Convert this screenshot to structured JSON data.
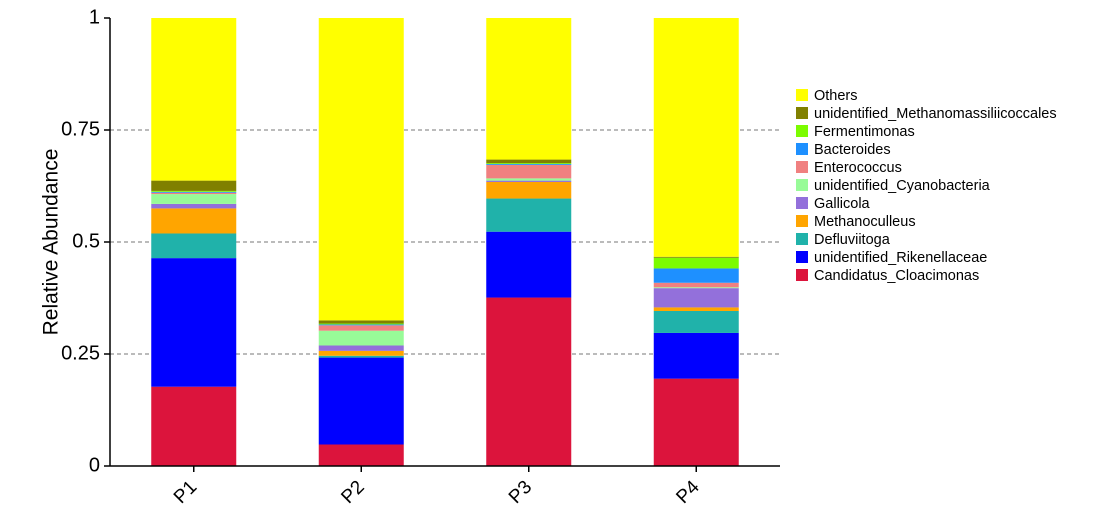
{
  "chart_data": {
    "type": "bar",
    "stacked": true,
    "title": "",
    "xlabel": "",
    "ylabel": "Relative Abundance",
    "ylim": [
      0,
      1
    ],
    "yticks": [
      0,
      0.25,
      0.5,
      0.75,
      1
    ],
    "ytick_labels": [
      "0",
      "0.25",
      "0.5",
      "0.75",
      "1"
    ],
    "grid": "dashed horizontal",
    "legend_position": "right",
    "categories": [
      "P1",
      "P2",
      "P3",
      "P4"
    ],
    "series": [
      {
        "name": "Candidatus_Cloacimonas",
        "color": "#dc143c",
        "values": [
          0.177,
          0.048,
          0.376,
          0.195
        ]
      },
      {
        "name": "unidentified_Rikenellaceae",
        "color": "#0000ff",
        "values": [
          0.287,
          0.194,
          0.147,
          0.102
        ]
      },
      {
        "name": "Defluviitoga",
        "color": "#20b2aa",
        "values": [
          0.055,
          0.004,
          0.074,
          0.049
        ]
      },
      {
        "name": "Methanoculleus",
        "color": "#ffa500",
        "values": [
          0.056,
          0.011,
          0.037,
          0.008
        ]
      },
      {
        "name": "Gallicola",
        "color": "#9370db",
        "values": [
          0.01,
          0.012,
          0.003,
          0.043
        ]
      },
      {
        "name": "unidentified_Cyanobacteria",
        "color": "#98fb98",
        "values": [
          0.022,
          0.033,
          0.005,
          0.002
        ]
      },
      {
        "name": "Enterococcus",
        "color": "#f08080",
        "values": [
          0.003,
          0.012,
          0.03,
          0.01
        ]
      },
      {
        "name": "Bacteroides",
        "color": "#1e90ff",
        "values": [
          0.002,
          0.002,
          0.002,
          0.032
        ]
      },
      {
        "name": "Fermentimonas",
        "color": "#7cfc00",
        "values": [
          0.002,
          0.002,
          0.002,
          0.024
        ]
      },
      {
        "name": "unidentified_Methanomassiliicoccales",
        "color": "#808000",
        "values": [
          0.023,
          0.007,
          0.008,
          0.002
        ]
      },
      {
        "name": "Others",
        "color": "#ffff00",
        "values": [
          0.363,
          0.675,
          0.316,
          0.533
        ]
      }
    ]
  }
}
